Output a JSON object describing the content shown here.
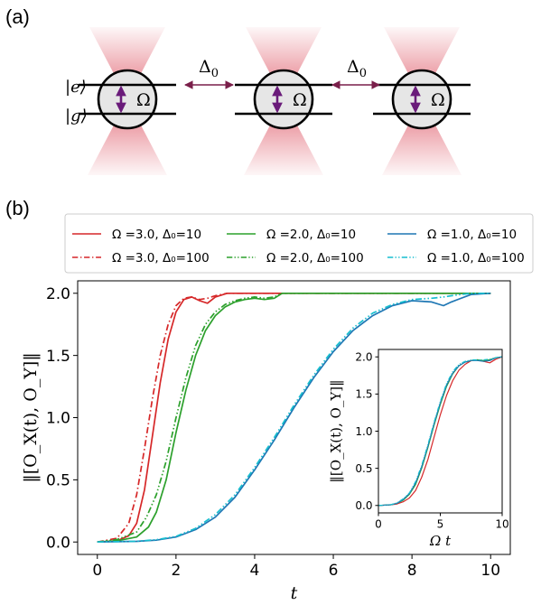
{
  "panel_a": {
    "label": "(a)",
    "state_e": "|e⟩",
    "state_g": "|g⟩",
    "omega": "Ω",
    "delta": "Δ",
    "delta_sub": "0",
    "colors": {
      "beam": "#e0606e",
      "arrow": "#7a1f4a",
      "spin": "#6a1b7a",
      "atom_fill": "#e6e6e6"
    }
  },
  "panel_b": {
    "label": "(b)"
  },
  "chart_data": [
    {
      "type": "line",
      "xlabel": "t",
      "ylabel": "‖[O_X(t), O_Y]‖",
      "xlim": [
        -0.5,
        10.5
      ],
      "ylim": [
        -0.1,
        2.1
      ],
      "xticks": [
        "0",
        "2",
        "4",
        "6",
        "8",
        "10"
      ],
      "yticks": [
        "0.0",
        "0.5",
        "1.0",
        "1.5",
        "2.0"
      ],
      "grid": false,
      "legend_position": "top",
      "series": [
        {
          "name": "Ω =3.0, Δ₀=10",
          "color": "#d62728",
          "dash": "solid",
          "x": [
            0,
            0.5,
            0.8,
            1.0,
            1.2,
            1.4,
            1.6,
            1.8,
            2.0,
            2.2,
            2.4,
            2.6,
            2.8,
            3.0,
            3.3,
            4,
            6,
            8,
            10
          ],
          "y": [
            0,
            0.01,
            0.05,
            0.15,
            0.42,
            0.85,
            1.28,
            1.63,
            1.85,
            1.95,
            1.97,
            1.94,
            1.92,
            1.97,
            2.0,
            2.0,
            2.0,
            2.0,
            2.0
          ]
        },
        {
          "name": "Ω =3.0, Δ₀=100",
          "color": "#d62728",
          "dash": "dashdot",
          "x": [
            0,
            0.5,
            0.8,
            1.0,
            1.2,
            1.4,
            1.6,
            1.8,
            2.0,
            2.2,
            2.4,
            2.6,
            2.8,
            3.0,
            3.3,
            4,
            6,
            8,
            10
          ],
          "y": [
            0,
            0.03,
            0.15,
            0.38,
            0.75,
            1.15,
            1.5,
            1.75,
            1.9,
            1.96,
            1.97,
            1.95,
            1.96,
            1.98,
            2.0,
            2.0,
            2.0,
            2.0,
            2.0
          ]
        },
        {
          "name": "Ω =2.0, Δ₀=10",
          "color": "#2ca02c",
          "dash": "solid",
          "x": [
            0,
            0.5,
            1.0,
            1.3,
            1.5,
            1.75,
            2.0,
            2.25,
            2.5,
            2.75,
            3.0,
            3.25,
            3.5,
            3.75,
            4.0,
            4.25,
            4.5,
            4.7,
            5.0,
            6,
            8,
            10
          ],
          "y": [
            0,
            0.01,
            0.04,
            0.12,
            0.24,
            0.5,
            0.88,
            1.22,
            1.5,
            1.7,
            1.82,
            1.89,
            1.93,
            1.95,
            1.96,
            1.95,
            1.96,
            2.0,
            2.0,
            2.0,
            2.0,
            2.0
          ]
        },
        {
          "name": "Ω =2.0, Δ₀=100",
          "color": "#2ca02c",
          "dash": "dashdotdot",
          "x": [
            0,
            0.5,
            1.0,
            1.25,
            1.5,
            1.75,
            2.0,
            2.25,
            2.5,
            2.75,
            3.0,
            3.25,
            3.5,
            3.75,
            4.0,
            4.25,
            4.5,
            4.7,
            5.0,
            6,
            8,
            10
          ],
          "y": [
            0,
            0.02,
            0.08,
            0.2,
            0.38,
            0.65,
            1.0,
            1.32,
            1.58,
            1.75,
            1.85,
            1.91,
            1.94,
            1.96,
            1.97,
            1.96,
            1.97,
            2.0,
            2.0,
            2.0,
            2.0,
            2.0
          ]
        },
        {
          "name": "Ω =1.0, Δ₀=10",
          "color": "#1f77b4",
          "dash": "solid",
          "x": [
            0,
            1,
            1.5,
            2.0,
            2.5,
            3.0,
            3.5,
            4.0,
            4.5,
            5.0,
            5.5,
            6.0,
            6.5,
            7.0,
            7.5,
            8.0,
            8.5,
            8.8,
            9.0,
            9.5,
            10
          ],
          "y": [
            0,
            0.005,
            0.015,
            0.04,
            0.1,
            0.2,
            0.36,
            0.58,
            0.82,
            1.08,
            1.32,
            1.53,
            1.7,
            1.82,
            1.9,
            1.94,
            1.93,
            1.9,
            1.93,
            1.99,
            2.0
          ]
        },
        {
          "name": "Ω =1.0, Δ₀=100",
          "color": "#17becf",
          "dash": "dashdotdot",
          "x": [
            0,
            1,
            1.5,
            2.0,
            2.5,
            3.0,
            3.5,
            4.0,
            4.5,
            5.0,
            5.5,
            6.0,
            6.5,
            7.0,
            7.5,
            8.0,
            8.5,
            8.8,
            9.0,
            9.5,
            10
          ],
          "y": [
            0,
            0.006,
            0.018,
            0.045,
            0.11,
            0.22,
            0.38,
            0.6,
            0.84,
            1.1,
            1.34,
            1.55,
            1.72,
            1.84,
            1.91,
            1.95,
            1.96,
            1.97,
            1.98,
            2.0,
            2.0
          ]
        }
      ]
    },
    {
      "type": "line",
      "xlabel": "Ω t",
      "ylabel": "‖[O_X(t), O_Y]‖",
      "xlim": [
        0,
        10
      ],
      "ylim": [
        -0.1,
        2.1
      ],
      "xticks": [
        "0",
        "5",
        "10"
      ],
      "yticks": [
        "0.0",
        "0.5",
        "1.0",
        "1.5",
        "2.0"
      ],
      "grid": false,
      "series": [
        {
          "color": "#d62728",
          "dash": "solid",
          "x": [
            0,
            1,
            1.5,
            2,
            2.5,
            3,
            3.5,
            4,
            4.5,
            5,
            5.5,
            6,
            6.5,
            7,
            7.5,
            8,
            8.5,
            9,
            9.5,
            10
          ],
          "y": [
            0,
            0.01,
            0.02,
            0.05,
            0.1,
            0.2,
            0.38,
            0.62,
            0.92,
            1.22,
            1.48,
            1.68,
            1.82,
            1.9,
            1.95,
            1.96,
            1.94,
            1.92,
            1.97,
            2.0
          ]
        },
        {
          "color": "#2ca02c",
          "dash": "solid",
          "x": [
            0,
            1,
            1.5,
            2,
            2.5,
            3,
            3.5,
            4,
            4.5,
            5,
            5.5,
            6,
            6.5,
            7,
            7.5,
            8,
            8.5,
            9,
            9.5,
            10
          ],
          "y": [
            0,
            0.01,
            0.03,
            0.07,
            0.15,
            0.28,
            0.5,
            0.78,
            1.08,
            1.36,
            1.6,
            1.77,
            1.88,
            1.93,
            1.95,
            1.96,
            1.95,
            1.96,
            1.99,
            2.0
          ]
        },
        {
          "color": "#1f77b4",
          "dash": "solid",
          "x": [
            0,
            1,
            1.5,
            2,
            2.5,
            3,
            3.5,
            4,
            4.5,
            5,
            5.5,
            6,
            6.5,
            7,
            7.5,
            8,
            8.5,
            9,
            9.5,
            10
          ],
          "y": [
            0,
            0.01,
            0.03,
            0.08,
            0.16,
            0.3,
            0.52,
            0.8,
            1.1,
            1.38,
            1.62,
            1.78,
            1.88,
            1.93,
            1.95,
            1.95,
            1.94,
            1.95,
            1.99,
            2.0
          ]
        },
        {
          "color": "#17becf",
          "dash": "dashdotdot",
          "x": [
            0,
            1,
            1.5,
            2,
            2.5,
            3,
            3.5,
            4,
            4.5,
            5,
            5.5,
            6,
            6.5,
            7,
            7.5,
            8,
            8.5,
            9,
            9.5,
            10
          ],
          "y": [
            0,
            0.012,
            0.035,
            0.09,
            0.17,
            0.32,
            0.54,
            0.82,
            1.12,
            1.4,
            1.64,
            1.8,
            1.9,
            1.94,
            1.96,
            1.96,
            1.96,
            1.97,
            1.99,
            2.0
          ]
        }
      ]
    }
  ]
}
